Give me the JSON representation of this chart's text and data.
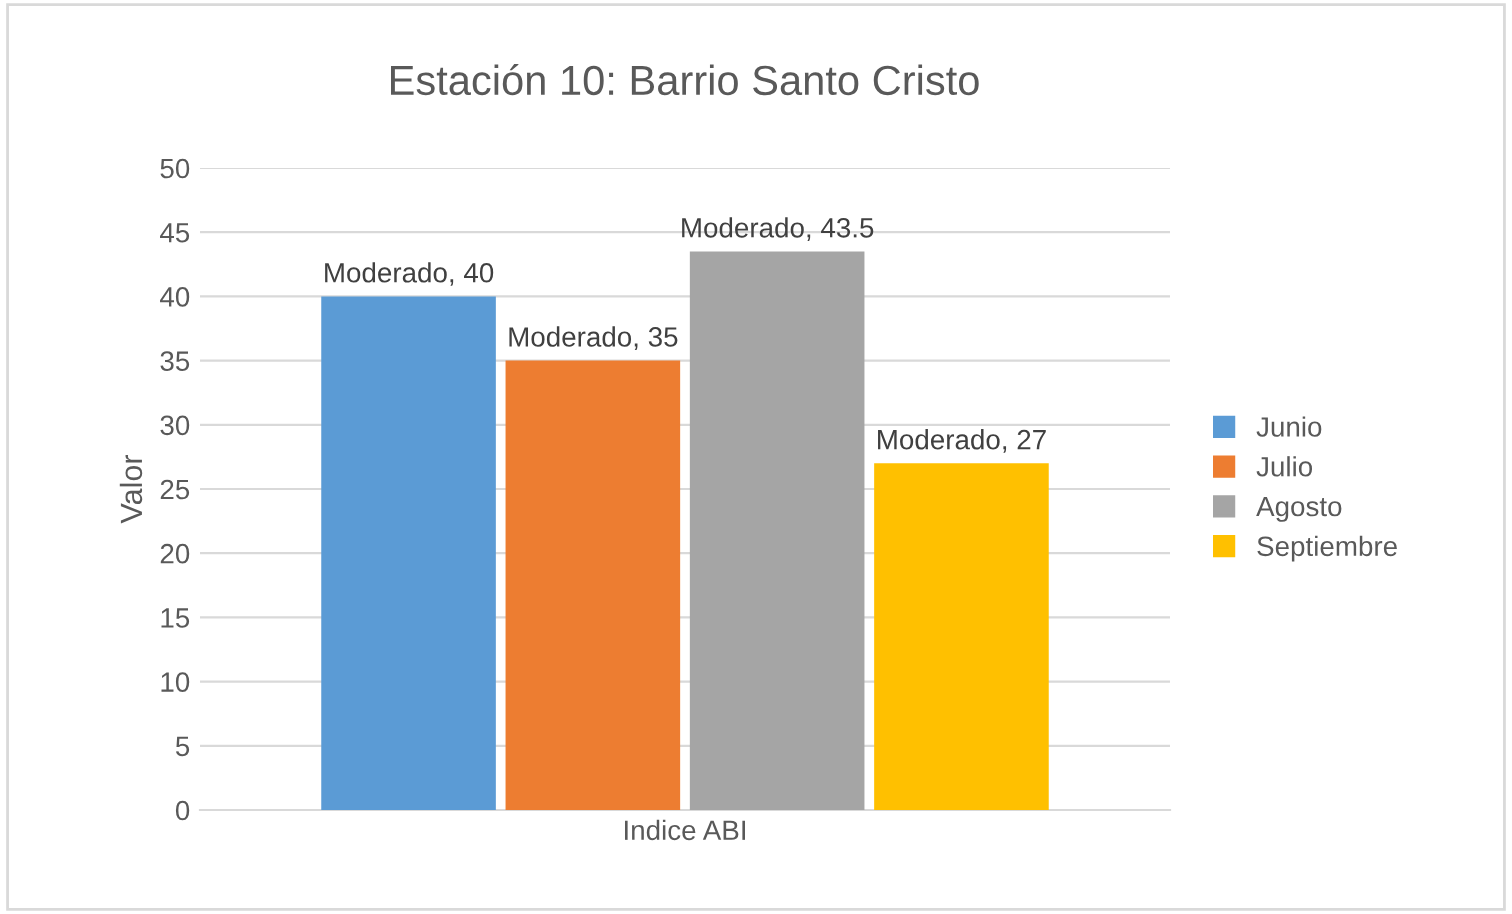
{
  "chart_data": {
    "type": "bar",
    "title": "Estación 10: Barrio Santo Cristo",
    "ylabel": "Valor",
    "categories": [
      "Indice ABI"
    ],
    "series": [
      {
        "name": "Junio",
        "color": "#5b9bd5",
        "values": [
          40
        ],
        "value_labels": [
          "Moderado, 40"
        ]
      },
      {
        "name": "Julio",
        "color": "#ed7d31",
        "values": [
          35
        ],
        "value_labels": [
          "Moderado, 35"
        ]
      },
      {
        "name": "Agosto",
        "color": "#a5a5a5",
        "values": [
          43.5
        ],
        "value_labels": [
          "Moderado, 43.5"
        ]
      },
      {
        "name": "Septiembre",
        "color": "#ffc000",
        "values": [
          27
        ],
        "value_labels": [
          "Moderado, 27"
        ]
      }
    ],
    "ylim": [
      0,
      50
    ],
    "yticks": [
      0,
      5,
      10,
      15,
      20,
      25,
      30,
      35,
      40,
      45,
      50
    ],
    "grid": "y",
    "legend": "right"
  }
}
